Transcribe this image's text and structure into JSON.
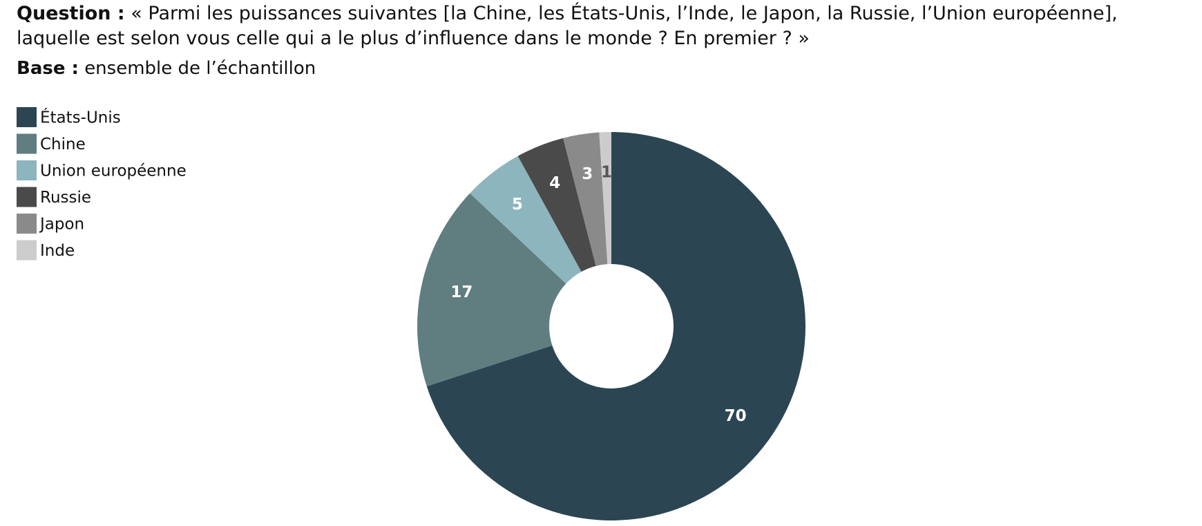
{
  "header": {
    "question_label": "Question :",
    "question": "« Parmi les puissances suivantes [la Chine, les États-Unis, l’Inde, le Japon, la Russie, l’Union européenne], laquelle est selon vous celle qui a le plus d’influence dans le monde ? En premier ? »",
    "base_label": "Base :",
    "base": "ensemble de l’échantillon"
  },
  "chart_data": {
    "type": "donut",
    "categories": [
      "États-Unis",
      "Chine",
      "Union européenne",
      "Russie",
      "Japon",
      "Inde"
    ],
    "values": [
      70,
      17,
      5,
      4,
      3,
      1
    ],
    "colors": [
      "#2b4652",
      "#607e80",
      "#8db5bd",
      "#4a4a4a",
      "#8a8a8a",
      "#cccccc"
    ],
    "label_colors": [
      "#ffffff",
      "#ffffff",
      "#ffffff",
      "#ffffff",
      "#ffffff",
      "#555555"
    ],
    "legend": "top-left"
  }
}
